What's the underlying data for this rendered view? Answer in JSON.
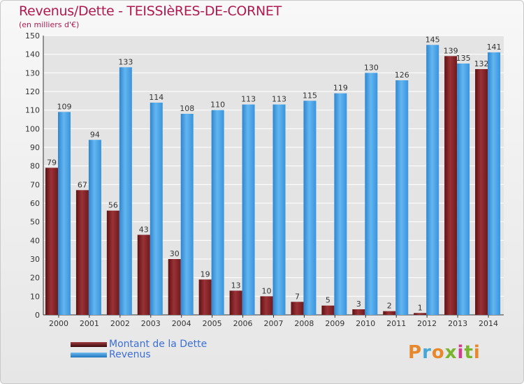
{
  "chart_data": {
    "type": "bar",
    "title": "Revenus/Dette - TEISSIèRES-DE-CORNET",
    "subtitle": "(en milliers d'€)",
    "categories": [
      "2000",
      "2001",
      "2002",
      "2003",
      "2004",
      "2005",
      "2006",
      "2007",
      "2008",
      "2009",
      "2010",
      "2011",
      "2012",
      "2013",
      "2014"
    ],
    "series": [
      {
        "name": "Montant de la Dette",
        "color": "#8b2a2e",
        "values": [
          79,
          67,
          56,
          43,
          30,
          19,
          13,
          10,
          7,
          5,
          3,
          2,
          1,
          139,
          132
        ]
      },
      {
        "name": "Revenus",
        "color": "#3f9be2",
        "values": [
          109,
          94,
          133,
          114,
          108,
          110,
          113,
          113,
          115,
          119,
          130,
          126,
          145,
          135,
          141
        ]
      }
    ],
    "yticks": [
      0,
      10,
      20,
      30,
      40,
      50,
      60,
      70,
      80,
      90,
      100,
      110,
      120,
      130,
      140,
      150
    ],
    "ylim": [
      0,
      150
    ],
    "grid": true,
    "legend": "bottom-left"
  },
  "logo": {
    "letters": [
      "P",
      "r",
      "o",
      "x",
      "i",
      "t",
      "i"
    ],
    "colors": [
      "#e8882c",
      "#45a7d8",
      "#e8882c",
      "#7ab52e",
      "#d43c8f",
      "#7ab52e",
      "#e8882c"
    ]
  }
}
